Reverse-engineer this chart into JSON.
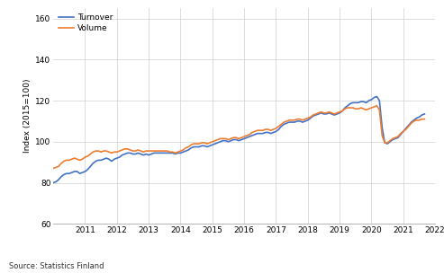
{
  "title": "",
  "ylabel": "Index (2015=100)",
  "source": "Source: Statistics Finland",
  "turnover_color": "#4472C4",
  "volume_color": "#ED7D31",
  "line_width": 1.2,
  "ylim": [
    60,
    165
  ],
  "yticks": [
    60,
    80,
    100,
    120,
    140,
    160
  ],
  "background_color": "#ffffff",
  "grid_color": "#d0d0d0",
  "legend_labels": [
    "Turnover",
    "Volume"
  ],
  "turnover": [
    80.0,
    80.5,
    81.5,
    83.0,
    84.0,
    84.5,
    84.5,
    85.0,
    85.5,
    85.5,
    84.5,
    85.0,
    85.5,
    86.5,
    88.0,
    89.5,
    90.5,
    91.0,
    91.0,
    91.5,
    92.0,
    91.5,
    90.5,
    91.5,
    92.0,
    92.5,
    93.5,
    94.0,
    94.5,
    94.5,
    94.0,
    94.0,
    94.5,
    94.0,
    93.5,
    94.0,
    93.5,
    94.0,
    94.5,
    94.5,
    94.5,
    94.5,
    94.5,
    94.5,
    94.5,
    94.5,
    94.0,
    94.5,
    94.5,
    95.0,
    95.5,
    96.0,
    97.0,
    97.5,
    97.5,
    97.5,
    98.0,
    98.0,
    97.5,
    98.0,
    98.5,
    99.0,
    99.5,
    100.0,
    100.5,
    100.5,
    100.0,
    100.5,
    101.0,
    101.0,
    100.5,
    101.0,
    101.5,
    102.0,
    102.5,
    103.0,
    103.5,
    104.0,
    104.0,
    104.0,
    104.5,
    104.5,
    104.0,
    104.5,
    105.0,
    106.0,
    107.5,
    108.5,
    109.0,
    109.5,
    109.5,
    109.5,
    110.0,
    110.0,
    109.5,
    110.0,
    110.5,
    111.5,
    112.5,
    113.0,
    113.5,
    114.0,
    113.5,
    113.5,
    114.0,
    113.5,
    113.0,
    113.5,
    114.0,
    115.0,
    116.5,
    117.5,
    118.5,
    119.0,
    119.0,
    119.0,
    119.5,
    119.5,
    119.0,
    120.0,
    120.5,
    121.5,
    122.0,
    120.0,
    107.0,
    99.5,
    99.0,
    100.0,
    101.0,
    101.5,
    102.0,
    103.5,
    105.0,
    106.5,
    108.0,
    109.5,
    110.5,
    111.5,
    112.0,
    113.0,
    113.5
  ],
  "volume": [
    87.0,
    87.5,
    88.0,
    89.5,
    90.5,
    91.0,
    91.0,
    91.5,
    92.0,
    91.5,
    91.0,
    91.5,
    92.5,
    93.0,
    94.0,
    95.0,
    95.5,
    95.5,
    95.0,
    95.5,
    95.5,
    95.0,
    94.5,
    95.0,
    95.0,
    95.5,
    96.0,
    96.5,
    96.5,
    96.0,
    95.5,
    95.5,
    96.0,
    95.5,
    95.0,
    95.5,
    95.5,
    95.5,
    95.5,
    95.5,
    95.5,
    95.5,
    95.5,
    95.5,
    95.0,
    95.0,
    94.5,
    95.0,
    95.5,
    96.0,
    97.0,
    97.5,
    98.5,
    99.0,
    99.0,
    99.0,
    99.5,
    99.5,
    99.0,
    99.5,
    100.0,
    100.5,
    101.0,
    101.5,
    101.5,
    101.5,
    101.0,
    101.5,
    102.0,
    102.0,
    101.5,
    102.0,
    102.5,
    103.0,
    103.5,
    104.5,
    105.0,
    105.5,
    105.5,
    105.5,
    106.0,
    106.0,
    105.5,
    106.0,
    106.5,
    107.5,
    108.5,
    109.5,
    110.0,
    110.5,
    110.5,
    110.5,
    111.0,
    111.0,
    110.5,
    111.0,
    111.5,
    112.0,
    113.0,
    113.5,
    114.0,
    114.5,
    114.0,
    114.0,
    114.5,
    114.0,
    113.5,
    114.0,
    114.5,
    115.0,
    116.0,
    116.5,
    116.5,
    116.5,
    116.0,
    116.0,
    116.5,
    116.0,
    115.5,
    116.0,
    116.5,
    117.0,
    117.5,
    115.5,
    103.0,
    99.5,
    99.5,
    100.5,
    101.5,
    102.0,
    102.5,
    104.0,
    105.0,
    106.0,
    107.5,
    109.0,
    110.0,
    110.5,
    110.5,
    111.0,
    111.0
  ],
  "start_year": 2010,
  "start_month": 1,
  "xlim": [
    2010.0,
    2022.0
  ],
  "xtick_years": [
    2011,
    2012,
    2013,
    2014,
    2015,
    2016,
    2017,
    2018,
    2019,
    2020,
    2021,
    2022
  ]
}
